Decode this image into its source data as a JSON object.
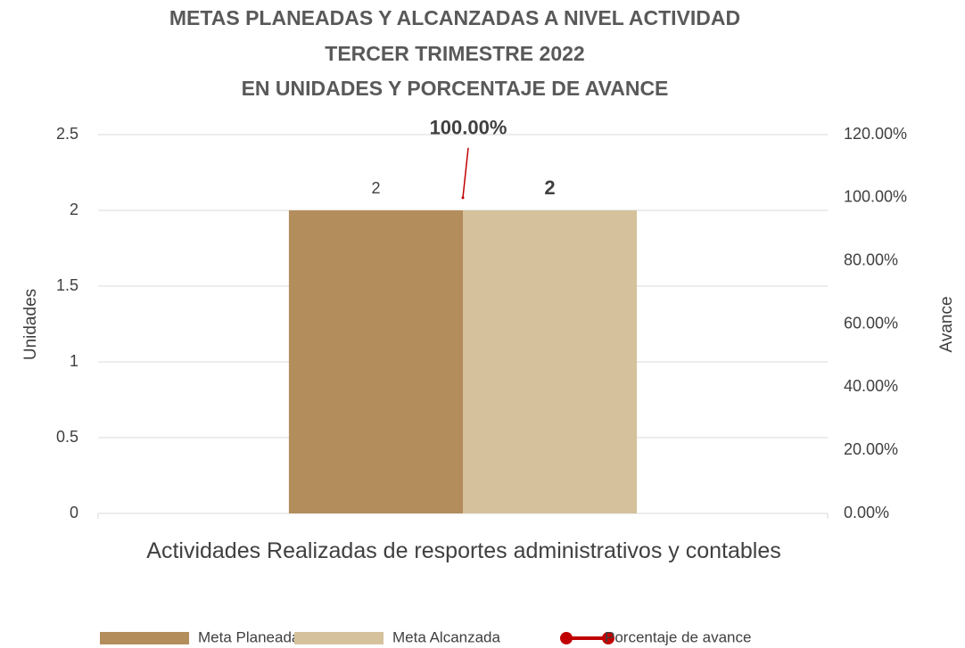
{
  "chart_data": {
    "type": "bar",
    "title": [
      "METAS PLANEADAS Y ALCANZADAS A NIVEL ACTIVIDAD",
      "TERCER TRIMESTRE 2022",
      "EN UNIDADES Y PORCENTAJE DE AVANCE"
    ],
    "y_label": "Unidades",
    "y2_label": "Avance",
    "categories": [
      "Actividades Realizadas de resportes administrativos y contables"
    ],
    "series": [
      {
        "name": "Meta Planeada",
        "color": "#b38d5c",
        "values": [
          2
        ]
      },
      {
        "name": "Meta Alcanzada",
        "color": "#d5c29c",
        "values": [
          2
        ]
      },
      {
        "name": "Porcentaje de avance",
        "color": "#c00000",
        "type": "line",
        "axis": "y2",
        "values": [
          100
        ],
        "value_labels": [
          "100.00%"
        ]
      }
    ],
    "ylim": [
      0,
      2.5
    ],
    "yticks": [
      0,
      0.5,
      1,
      1.5,
      2,
      2.5
    ],
    "y2lim": [
      0,
      120
    ],
    "y2ticks": [
      {
        "value": 0,
        "label": "0.00%"
      },
      {
        "value": 20,
        "label": "20.00%"
      },
      {
        "value": 40,
        "label": "40.00%"
      },
      {
        "value": 60,
        "label": "60.00%"
      },
      {
        "value": 80,
        "label": "80.00%"
      },
      {
        "value": 100,
        "label": "100.00%"
      },
      {
        "value": 120,
        "label": "120.00%"
      }
    ],
    "grid": true,
    "legend": "bottom"
  }
}
